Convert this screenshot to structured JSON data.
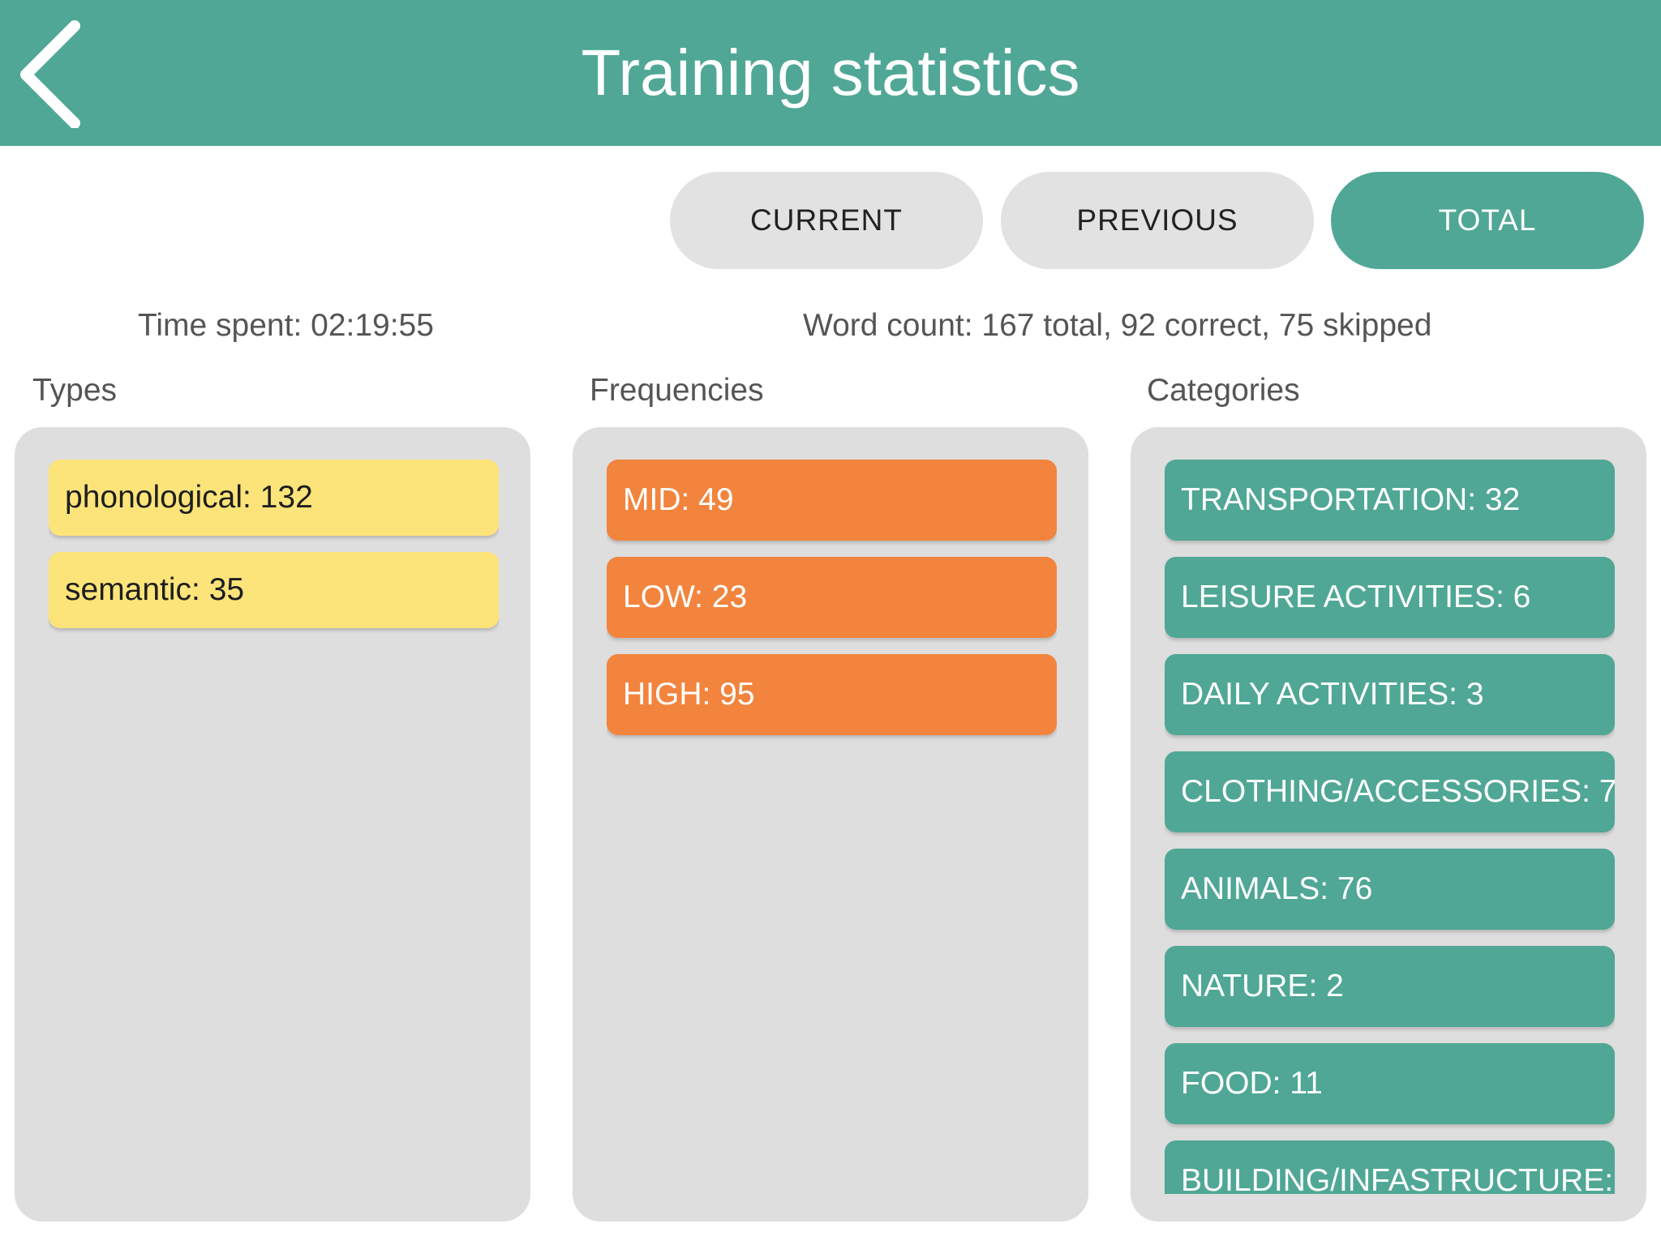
{
  "header": {
    "title": "Training statistics",
    "back_icon": "chevron-left-icon"
  },
  "tabs": [
    {
      "label": "CURRENT",
      "active": false
    },
    {
      "label": "PREVIOUS",
      "active": false
    },
    {
      "label": "TOTAL",
      "active": true
    }
  ],
  "summary": {
    "time_spent": "Time spent: 02:19:55",
    "word_count": "Word count: 167 total, 92 correct, 75 skipped"
  },
  "columns": {
    "types": {
      "heading": "Types",
      "items": [
        "phonological: 132",
        "semantic: 35"
      ]
    },
    "frequencies": {
      "heading": "Frequencies",
      "items": [
        "MID: 49",
        "LOW: 23",
        "HIGH: 95"
      ]
    },
    "categories": {
      "heading": "Categories",
      "items": [
        "TRANSPORTATION: 32",
        "LEISURE ACTIVITIES: 6",
        "DAILY ACTIVITIES: 3",
        "CLOTHING/ACCESSORIES: 7",
        "ANIMALS: 76",
        "NATURE: 2",
        "FOOD: 11",
        "BUILDING/INFASTRUCTURE:"
      ]
    }
  },
  "colors": {
    "accent": "#50a795",
    "types_chip": "#fde47a",
    "frequencies_chip": "#f2843d",
    "categories_chip": "#50a795",
    "panel": "#dedede",
    "tab_inactive": "#e2e2e2"
  }
}
